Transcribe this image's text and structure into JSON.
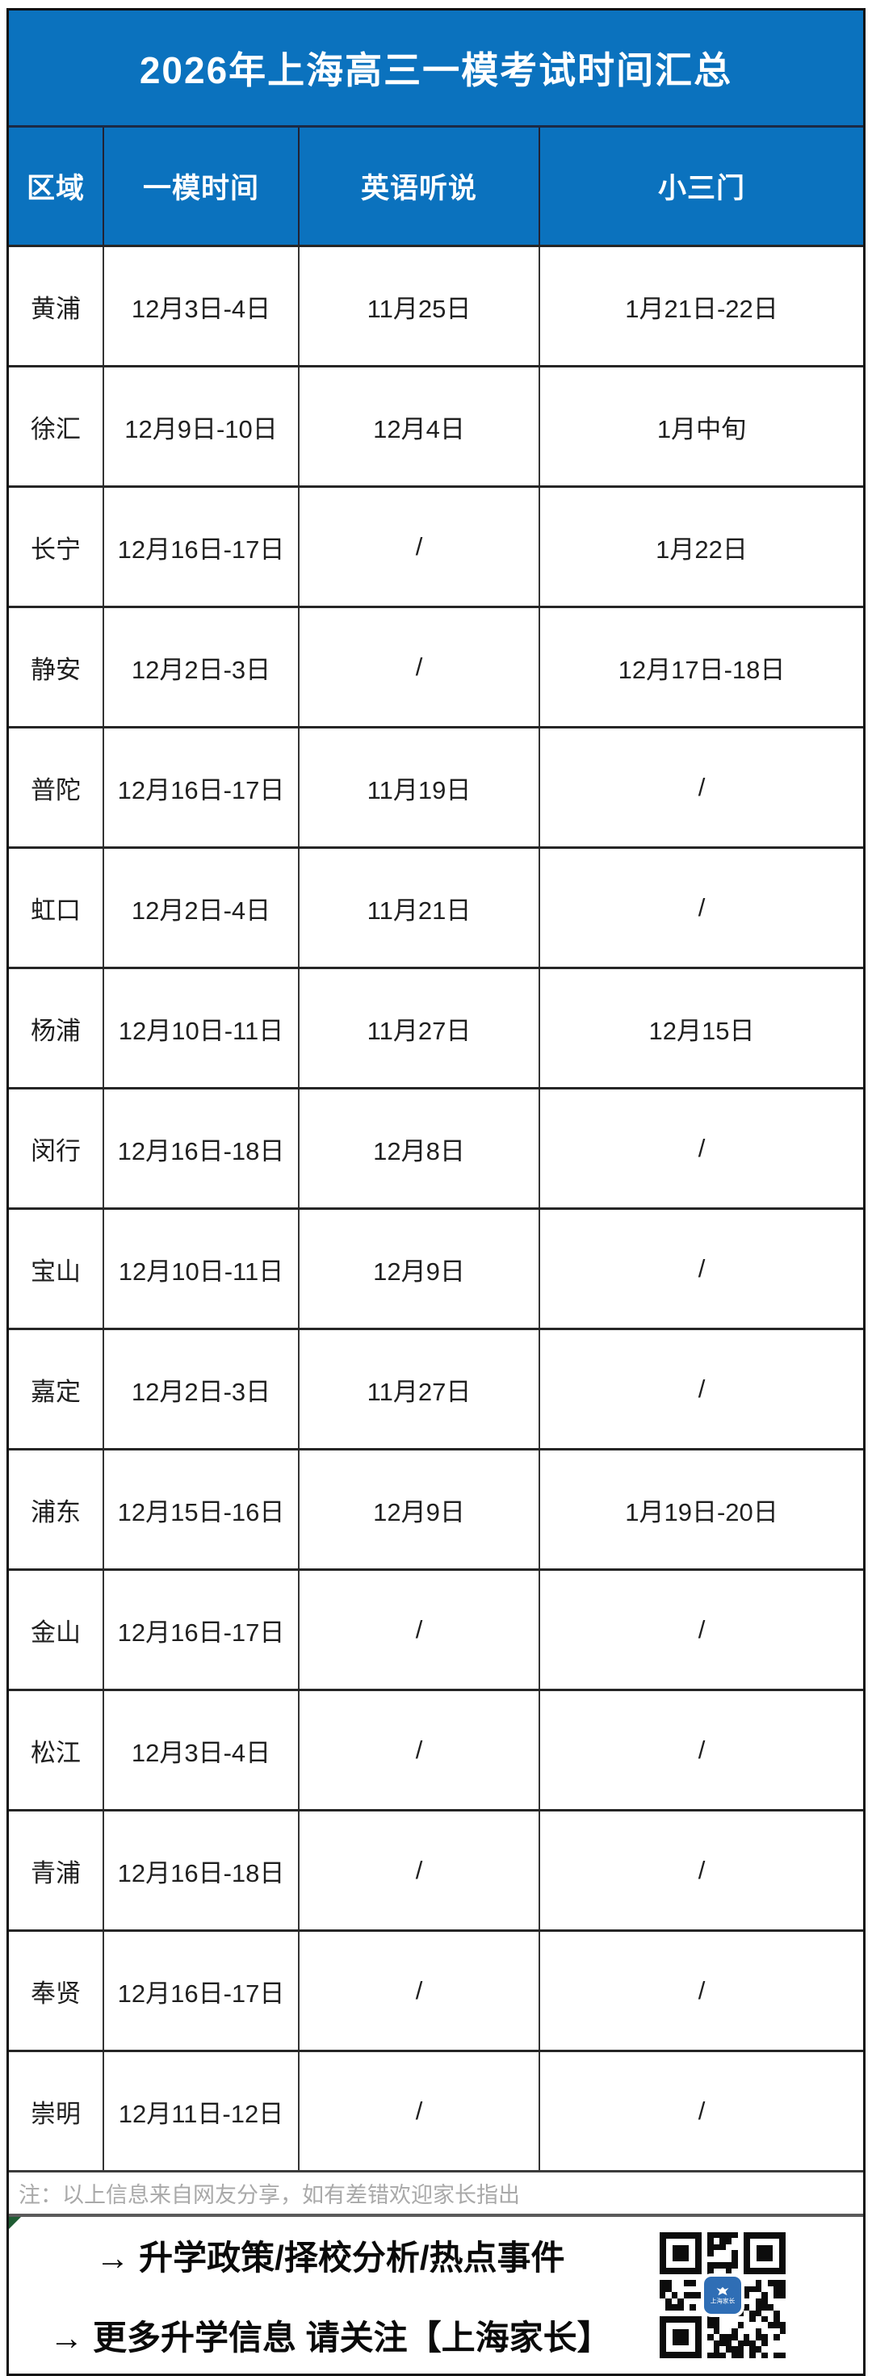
{
  "title": "2026年上海高三一模考试时间汇总",
  "chart_data": {
    "type": "table",
    "title": "2026年上海高三一模考试时间汇总",
    "columns": [
      "区域",
      "一模时间",
      "英语听说",
      "小三门"
    ],
    "rows": [
      [
        "黄浦",
        "12月3日-4日",
        "11月25日",
        "1月21日-22日"
      ],
      [
        "徐汇",
        "12月9日-10日",
        "12月4日",
        "1月中旬"
      ],
      [
        "长宁",
        "12月16日-17日",
        "/",
        "1月22日"
      ],
      [
        "静安",
        "12月2日-3日",
        "/",
        "12月17日-18日"
      ],
      [
        "普陀",
        "12月16日-17日",
        "11月19日",
        "/"
      ],
      [
        "虹口",
        "12月2日-4日",
        "11月21日",
        "/"
      ],
      [
        "杨浦",
        "12月10日-11日",
        "11月27日",
        "12月15日"
      ],
      [
        "闵行",
        "12月16日-18日",
        "12月8日",
        "/"
      ],
      [
        "宝山",
        "12月10日-11日",
        "12月9日",
        "/"
      ],
      [
        "嘉定",
        "12月2日-3日",
        "11月27日",
        "/"
      ],
      [
        "浦东",
        "12月15日-16日",
        "12月9日",
        "1月19日-20日"
      ],
      [
        "金山",
        "12月16日-17日",
        "/",
        "/"
      ],
      [
        "松江",
        "12月3日-4日",
        "/",
        "/"
      ],
      [
        "青浦",
        "12月16日-18日",
        "/",
        "/"
      ],
      [
        "奉贤",
        "12月16日-17日",
        "/",
        "/"
      ],
      [
        "崇明",
        "12月11日-12日",
        "/",
        "/"
      ]
    ],
    "layout": {
      "grid": true,
      "header_background": "#0b72be",
      "header_text_color": "#ffffff"
    }
  },
  "note": "注：以上信息来自网友分享，如有差错欢迎家长指出",
  "footer": {
    "line1": "→ 升学政策/择校分析/热点事件",
    "line2": "→ 更多升学信息 请关注【上海家长】",
    "qr_icon": "qr-code-icon",
    "qr_logo_label": "上海家长"
  },
  "colors": {
    "header_blue": "#0b72be",
    "qr_logo_blue": "#2f6eb5",
    "note_gray": "#a9a9a9",
    "corner_green": "#1f5c33",
    "text_dark": "#1f1f1f"
  }
}
